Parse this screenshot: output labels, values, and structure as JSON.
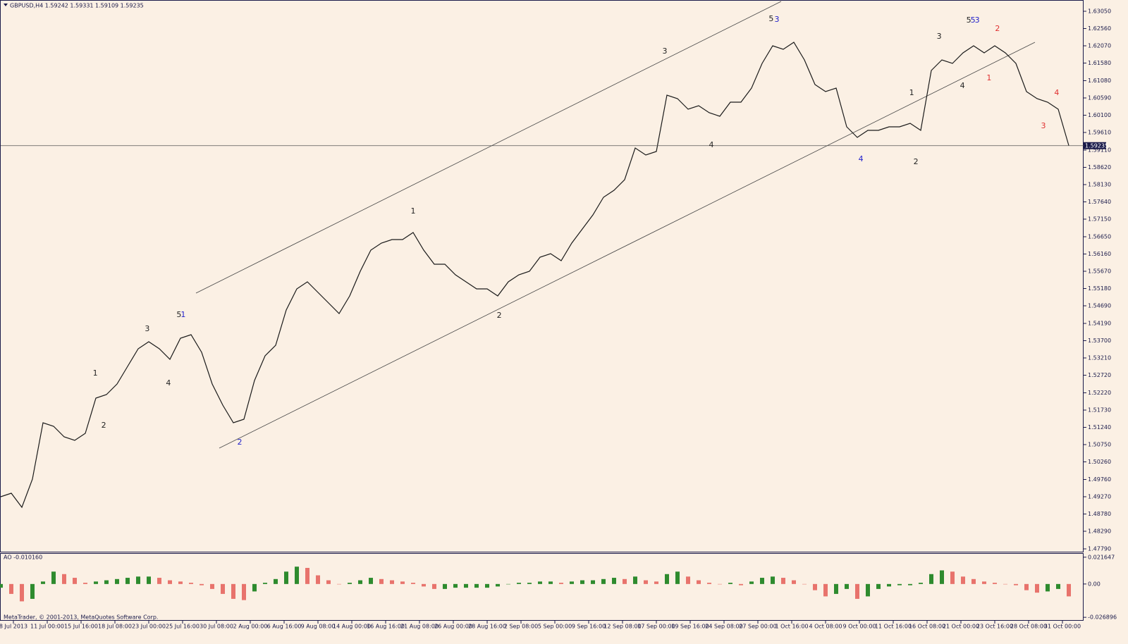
{
  "chart_data": [
    {
      "type": "line",
      "title": "GBPUSD,H4  1.59242 1.59331 1.59109 1.59235",
      "color": "#1a1a1a",
      "x": [
        0,
        5,
        10,
        15,
        20,
        25,
        30,
        35,
        40,
        45,
        50,
        55,
        60,
        65,
        70,
        75,
        80,
        85,
        90,
        95,
        100,
        105,
        110,
        115,
        120,
        125,
        130,
        135,
        140,
        145,
        150,
        155,
        160,
        165,
        170,
        175,
        180,
        185,
        190,
        195,
        200,
        205,
        210,
        215,
        220,
        225,
        230,
        235,
        240,
        245,
        250,
        255,
        260,
        265,
        270,
        275,
        280,
        285,
        290,
        295,
        300,
        305,
        310,
        315,
        320,
        325,
        330,
        335,
        340,
        345,
        350,
        355,
        360,
        365,
        370,
        375,
        380,
        385,
        390,
        395,
        400,
        405,
        410,
        415,
        420,
        425,
        430,
        435,
        440,
        445,
        450,
        455,
        460,
        465,
        470,
        475,
        480,
        485,
        490,
        495,
        500,
        505
      ],
      "values": [
        1.4927,
        1.4937,
        1.4897,
        1.4977,
        1.5137,
        1.5127,
        1.5097,
        1.5087,
        1.5107,
        1.5207,
        1.5217,
        1.5247,
        1.5297,
        1.5347,
        1.5367,
        1.5347,
        1.5317,
        1.5377,
        1.5387,
        1.5337,
        1.5247,
        1.5187,
        1.5137,
        1.5147,
        1.5257,
        1.5327,
        1.5357,
        1.5457,
        1.5517,
        1.5537,
        1.5507,
        1.5477,
        1.5447,
        1.5497,
        1.5567,
        1.5627,
        1.5647,
        1.5657,
        1.5657,
        1.5677,
        1.5627,
        1.5587,
        1.5587,
        1.5557,
        1.5537,
        1.5517,
        1.5517,
        1.5497,
        1.5537,
        1.5557,
        1.5567,
        1.5607,
        1.5617,
        1.5597,
        1.5647,
        1.5687,
        1.5727,
        1.5777,
        1.5797,
        1.5827,
        1.5917,
        1.5897,
        1.5907,
        1.6067,
        1.6057,
        1.6027,
        1.6037,
        1.6017,
        1.6007,
        1.6047,
        1.6047,
        1.6087,
        1.6157,
        1.6207,
        1.6197,
        1.6217,
        1.6167,
        1.6097,
        1.6077,
        1.6087,
        1.5977,
        1.5947,
        1.5967,
        1.5967,
        1.5977,
        1.5977,
        1.5987,
        1.5967,
        1.6137,
        1.6167,
        1.6157,
        1.6187,
        1.6207,
        1.6187,
        1.6207,
        1.6187,
        1.6157,
        1.6077,
        1.6057,
        1.6047,
        1.6027,
        1.5924
      ],
      "xlim": [
        0,
        510
      ],
      "xticks": [
        {
          "value": 6,
          "label": "8 Jul 2013"
        },
        {
          "value": 22,
          "label": "11 Jul 00:00"
        },
        {
          "value": 38,
          "label": "15 Jul 16:00"
        },
        {
          "value": 54,
          "label": "18 Jul 08:00"
        },
        {
          "value": 70,
          "label": "23 Jul 00:00"
        },
        {
          "value": 86,
          "label": "25 Jul 16:00"
        },
        {
          "value": 102,
          "label": "30 Jul 08:00"
        },
        {
          "value": 118,
          "label": "2 Aug 00:00"
        },
        {
          "value": 134,
          "label": "6 Aug 16:00"
        },
        {
          "value": 150,
          "label": "9 Aug 08:00"
        },
        {
          "value": 166,
          "label": "14 Aug 00:00"
        },
        {
          "value": 182,
          "label": "16 Aug 16:00"
        },
        {
          "value": 198,
          "label": "21 Aug 08:00"
        },
        {
          "value": 214,
          "label": "26 Aug 00:00"
        },
        {
          "value": 230,
          "label": "28 Aug 16:00"
        },
        {
          "value": 246,
          "label": "2 Sep 08:00"
        },
        {
          "value": 262,
          "label": "5 Sep 00:00"
        },
        {
          "value": 278,
          "label": "9 Sep 16:00"
        },
        {
          "value": 294,
          "label": "12 Sep 08:00"
        },
        {
          "value": 310,
          "label": "17 Sep 00:00"
        },
        {
          "value": 326,
          "label": "19 Sep 16:00"
        },
        {
          "value": 342,
          "label": "24 Sep 08:00"
        },
        {
          "value": 358,
          "label": "27 Sep 00:00"
        },
        {
          "value": 374,
          "label": "1 Oct 16:00"
        },
        {
          "value": 390,
          "label": "4 Oct 08:00"
        },
        {
          "value": 406,
          "label": "9 Oct 00:00"
        },
        {
          "value": 422,
          "label": "11 Oct 16:00"
        },
        {
          "value": 438,
          "label": "16 Oct 08:00"
        },
        {
          "value": 454,
          "label": "21 Oct 00:00"
        },
        {
          "value": 470,
          "label": "23 Oct 16:00"
        },
        {
          "value": 486,
          "label": "28 Oct 08:00"
        },
        {
          "value": 502,
          "label": "31 Oct 00:00"
        }
      ],
      "ylim": [
        1.4771,
        1.6337
      ],
      "yticks": [
        {
          "value": 1.6305,
          "label": "1.63050"
        },
        {
          "value": 1.6256,
          "label": "1.62560"
        },
        {
          "value": 1.6207,
          "label": "1.62070"
        },
        {
          "value": 1.6158,
          "label": "1.61580"
        },
        {
          "value": 1.6108,
          "label": "1.61080"
        },
        {
          "value": 1.6059,
          "label": "1.60590"
        },
        {
          "value": 1.601,
          "label": "1.60100"
        },
        {
          "value": 1.5961,
          "label": "1.59610"
        },
        {
          "value": 1.5911,
          "label": "1.59110"
        },
        {
          "value": 1.5862,
          "label": "1.58620"
        },
        {
          "value": 1.5813,
          "label": "1.58130"
        },
        {
          "value": 1.5764,
          "label": "1.57640"
        },
        {
          "value": 1.5715,
          "label": "1.57150"
        },
        {
          "value": 1.5665,
          "label": "1.56650"
        },
        {
          "value": 1.5616,
          "label": "1.56160"
        },
        {
          "value": 1.5567,
          "label": "1.55670"
        },
        {
          "value": 1.5518,
          "label": "1.55180"
        },
        {
          "value": 1.5469,
          "label": "1.54690"
        },
        {
          "value": 1.5419,
          "label": "1.54190"
        },
        {
          "value": 1.537,
          "label": "1.53700"
        },
        {
          "value": 1.5321,
          "label": "1.53210"
        },
        {
          "value": 1.5272,
          "label": "1.52720"
        },
        {
          "value": 1.5222,
          "label": "1.52220"
        },
        {
          "value": 1.5173,
          "label": "1.51730"
        },
        {
          "value": 1.5124,
          "label": "1.51240"
        },
        {
          "value": 1.5075,
          "label": "1.50750"
        },
        {
          "value": 1.5026,
          "label": "1.50260"
        },
        {
          "value": 1.4976,
          "label": "1.49760"
        },
        {
          "value": 1.4927,
          "label": "1.49270"
        },
        {
          "value": 1.4878,
          "label": "1.48780"
        },
        {
          "value": 1.4829,
          "label": "1.48290"
        },
        {
          "value": 1.4779,
          "label": "1.47790"
        }
      ],
      "current_price": 1.59235,
      "annotations": [
        {
          "text": "1",
          "x": 44.7,
          "y": 1.5277,
          "color": "#222222"
        },
        {
          "text": "2",
          "x": 48.7,
          "y": 1.5129,
          "color": "#222222"
        },
        {
          "text": "3",
          "x": 69.3,
          "y": 1.5403,
          "color": "#222222"
        },
        {
          "text": "4",
          "x": 79.3,
          "y": 1.5249,
          "color": "#222222"
        },
        {
          "text": "5",
          "x": 84.3,
          "y": 1.5443,
          "color": "#222222"
        },
        {
          "text": "1",
          "x": 86.3,
          "y": 1.5443,
          "color": "#2222cc"
        },
        {
          "text": "2",
          "x": 113,
          "y": 1.5081,
          "color": "#2222cc"
        },
        {
          "text": "1",
          "x": 195,
          "y": 1.5737,
          "color": "#222222"
        },
        {
          "text": "2",
          "x": 235.7,
          "y": 1.5441,
          "color": "#222222"
        },
        {
          "text": "3",
          "x": 314,
          "y": 1.6191,
          "color": "#222222"
        },
        {
          "text": "4",
          "x": 336,
          "y": 1.5925,
          "color": "#222222"
        },
        {
          "text": "5",
          "x": 364.3,
          "y": 1.6283,
          "color": "#222222"
        },
        {
          "text": "3",
          "x": 367,
          "y": 1.6281,
          "color": "#2222cc"
        },
        {
          "text": "4",
          "x": 406.7,
          "y": 1.5885,
          "color": "#2222cc"
        },
        {
          "text": "1",
          "x": 430.7,
          "y": 1.6073,
          "color": "#222222"
        },
        {
          "text": "2",
          "x": 432.7,
          "y": 1.5877,
          "color": "#222222"
        },
        {
          "text": "3",
          "x": 443.7,
          "y": 1.6233,
          "color": "#222222"
        },
        {
          "text": "4",
          "x": 454.7,
          "y": 1.6093,
          "color": "#222222"
        },
        {
          "text": "5",
          "x": 457.7,
          "y": 1.6279,
          "color": "#222222"
        },
        {
          "text": "5",
          "x": 459.7,
          "y": 1.6279,
          "color": "#2222cc"
        },
        {
          "text": "3",
          "x": 461.7,
          "y": 1.6279,
          "color": "#2222cc"
        },
        {
          "text": "2",
          "x": 471.3,
          "y": 1.6255,
          "color": "#e03030"
        },
        {
          "text": "1",
          "x": 467.3,
          "y": 1.6115,
          "color": "#e03030"
        },
        {
          "text": "4",
          "x": 499.3,
          "y": 1.6073,
          "color": "#e03030"
        },
        {
          "text": "3",
          "x": 493,
          "y": 1.5979,
          "color": "#e03030"
        }
      ]
    },
    {
      "type": "bar",
      "title": "AO -0.010160",
      "up_color": "#2e8b2e",
      "down_color": "#e8736c",
      "x": [
        0,
        5,
        10,
        15,
        20,
        25,
        30,
        35,
        40,
        45,
        50,
        55,
        60,
        65,
        70,
        75,
        80,
        85,
        90,
        95,
        100,
        105,
        110,
        115,
        120,
        125,
        130,
        135,
        140,
        145,
        150,
        155,
        160,
        165,
        170,
        175,
        180,
        185,
        190,
        195,
        200,
        205,
        210,
        215,
        220,
        225,
        230,
        235,
        240,
        245,
        250,
        255,
        260,
        265,
        270,
        275,
        280,
        285,
        290,
        295,
        300,
        305,
        310,
        315,
        320,
        325,
        330,
        335,
        340,
        345,
        350,
        355,
        360,
        365,
        370,
        375,
        380,
        385,
        390,
        395,
        400,
        405,
        410,
        415,
        420,
        425,
        430,
        435,
        440,
        445,
        450,
        455,
        460,
        465,
        470,
        475,
        480,
        485,
        490,
        495,
        500,
        505
      ],
      "values": [
        -0.003,
        -0.008,
        -0.014,
        -0.012,
        0.002,
        0.01,
        0.008,
        0.005,
        0.001,
        0.002,
        0.003,
        0.004,
        0.005,
        0.006,
        0.006,
        0.005,
        0.003,
        0.002,
        0.001,
        -0.001,
        -0.004,
        -0.008,
        -0.012,
        -0.013,
        -0.006,
        0.001,
        0.004,
        0.01,
        0.014,
        0.013,
        0.007,
        0.003,
        0,
        0.001,
        0.003,
        0.005,
        0.004,
        0.003,
        0.002,
        0.001,
        -0.002,
        -0.004,
        -0.004,
        -0.003,
        -0.003,
        -0.003,
        -0.003,
        -0.002,
        0,
        0.001,
        0.001,
        0.002,
        0.002,
        0.001,
        0.002,
        0.003,
        0.003,
        0.004,
        0.005,
        0.004,
        0.006,
        0.003,
        0.002,
        0.008,
        0.01,
        0.006,
        0.003,
        0.001,
        0,
        0.001,
        -0.001,
        0.002,
        0.005,
        0.006,
        0.005,
        0.003,
        0,
        -0.005,
        -0.01,
        -0.008,
        -0.004,
        -0.012,
        -0.01,
        -0.004,
        -0.002,
        -0.001,
        -0.001,
        0.001,
        0.008,
        0.011,
        0.01,
        0.006,
        0.004,
        0.002,
        0.001,
        0,
        -0.001,
        -0.005,
        -0.007,
        -0.006,
        -0.004,
        -0.01
      ],
      "ylim": [
        -0.0291,
        0.0238
      ],
      "yticks": [
        0.021647,
        {
          "value": 0,
          "label": "0.00"
        },
        -0.026896
      ]
    }
  ],
  "footer": "MetaTrader, © 2001-2013, MetaQuotes Software Corp."
}
